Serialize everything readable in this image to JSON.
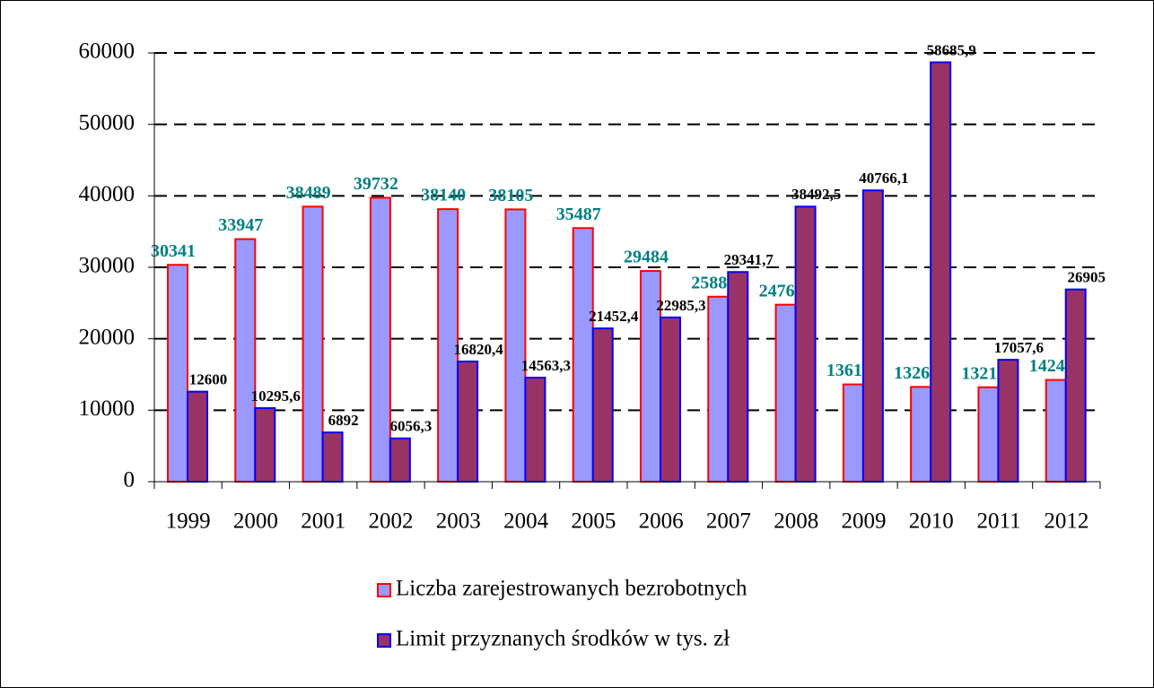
{
  "chart_data": {
    "type": "bar",
    "categories": [
      "1999",
      "2000",
      "2001",
      "2002",
      "2003",
      "2004",
      "2005",
      "2006",
      "2007",
      "2008",
      "2009",
      "2010",
      "2011",
      "2012"
    ],
    "series": [
      {
        "name": "Liczba zarejestrowanych bezrobotnych",
        "color": "#9999ff",
        "edgecolor": "#ff0000",
        "label_color": "#008080",
        "values": [
          30341,
          33947,
          38489,
          39732,
          38140,
          38105,
          35487,
          29484,
          25886,
          24767,
          13612,
          13261,
          13214,
          14240
        ]
      },
      {
        "name": "Limit przyznanych środków w tys. zł",
        "color": "#993366",
        "edgecolor": "#0000ff",
        "label_color": "#000000",
        "values": [
          12600,
          10295.6,
          6892,
          6056.3,
          16820.4,
          14563.3,
          21452.4,
          22985.3,
          29341.7,
          38492.5,
          40766.1,
          58685.9,
          17057.6,
          26905
        ],
        "value_labels": [
          "12600",
          "10295,6",
          "6892",
          "6056,3",
          "16820,4",
          "14563,3",
          "21452,4",
          "22985,3",
          "29341,7",
          "38492,5",
          "40766,1",
          "58685,9",
          "17057,6",
          "26905"
        ]
      }
    ],
    "ylim": [
      0,
      60000
    ],
    "yticks": [
      0,
      10000,
      20000,
      30000,
      40000,
      50000,
      60000
    ],
    "grid": true,
    "legend": "bottom"
  }
}
